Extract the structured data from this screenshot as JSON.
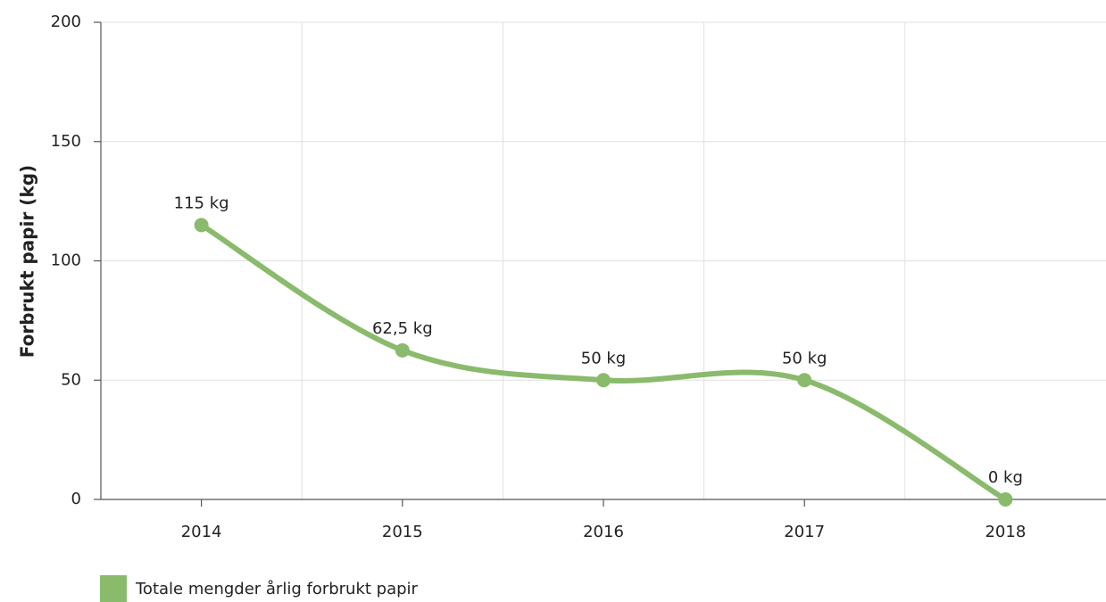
{
  "chart_data": {
    "type": "line",
    "ylabel": "Forbrukt papir (kg)",
    "categories": [
      "2014",
      "2015",
      "2016",
      "2017",
      "2018"
    ],
    "series": [
      {
        "name": "Totale mengder årlig forbrukt papir",
        "color": "#8aba6b",
        "values": [
          115,
          62.5,
          50,
          50,
          0
        ],
        "value_labels": [
          "115 kg",
          "62,5 kg",
          "50 kg",
          "50 kg",
          "0 kg"
        ]
      }
    ],
    "ylim": [
      0,
      200
    ],
    "yticks": [
      0,
      50,
      100,
      150,
      200
    ],
    "grid": true,
    "legend": "bottom-left"
  }
}
